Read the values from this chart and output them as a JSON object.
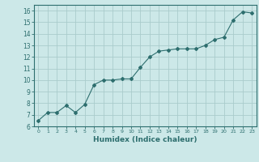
{
  "x": [
    0,
    1,
    2,
    3,
    4,
    5,
    6,
    7,
    8,
    9,
    10,
    11,
    12,
    13,
    14,
    15,
    16,
    17,
    18,
    19,
    20,
    21,
    22,
    23
  ],
  "y": [
    6.5,
    7.2,
    7.2,
    7.8,
    7.2,
    7.9,
    9.6,
    10.0,
    10.0,
    10.1,
    10.1,
    11.1,
    12.0,
    12.5,
    12.6,
    12.7,
    12.7,
    12.7,
    13.0,
    13.5,
    13.7,
    15.2,
    15.9,
    15.8
  ],
  "xlabel": "Humidex (Indice chaleur)",
  "ylim": [
    6,
    16.5
  ],
  "xlim": [
    -0.5,
    23.5
  ],
  "line_color": "#2d6e6e",
  "marker": "D",
  "marker_size": 2.0,
  "bg_color": "#cce8e8",
  "grid_color": "#aacccc",
  "axis_color": "#2d6e6e",
  "tick_label_color": "#2d6e6e",
  "xlabel_color": "#2d6e6e",
  "yticks": [
    6,
    7,
    8,
    9,
    10,
    11,
    12,
    13,
    14,
    15,
    16
  ],
  "xticks": [
    0,
    1,
    2,
    3,
    4,
    5,
    6,
    7,
    8,
    9,
    10,
    11,
    12,
    13,
    14,
    15,
    16,
    17,
    18,
    19,
    20,
    21,
    22,
    23
  ]
}
